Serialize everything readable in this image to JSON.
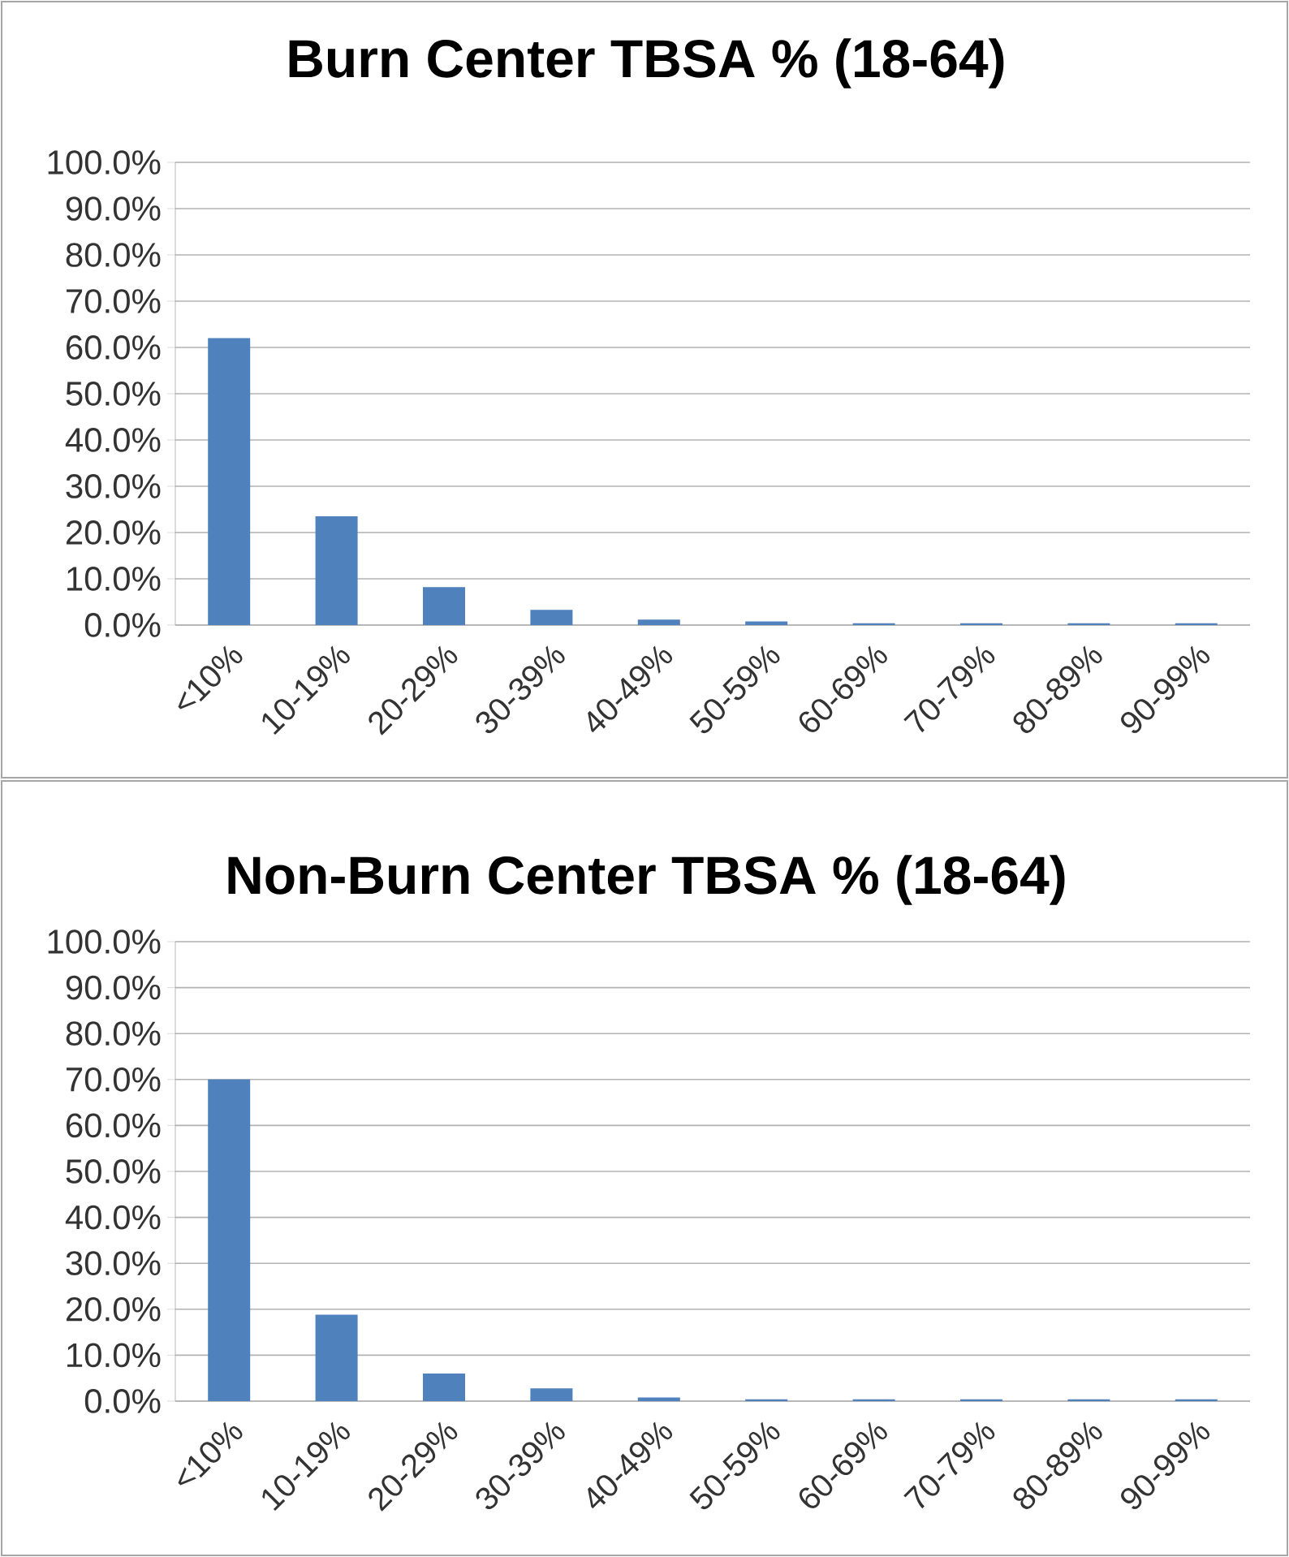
{
  "chart_data": [
    {
      "type": "bar",
      "title": "Burn Center TBSA % (18-64)",
      "categories": [
        "<10%",
        "10-19%",
        "20-29%",
        "30-39%",
        "40-49%",
        "50-59%",
        "60-69%",
        "70-79%",
        "80-89%",
        "90-99%"
      ],
      "values": [
        62,
        23.5,
        8.2,
        3.3,
        1.2,
        0.8,
        0.4,
        0.4,
        0.4,
        0.4
      ],
      "color": "#4f81bd",
      "ylim": [
        0,
        100
      ],
      "yticks": [
        {
          "value": 0,
          "label": "0.0%"
        },
        {
          "value": 10,
          "label": "10.0%"
        },
        {
          "value": 20,
          "label": "20.0%"
        },
        {
          "value": 30,
          "label": "30.0%"
        },
        {
          "value": 40,
          "label": "40.0%"
        },
        {
          "value": 50,
          "label": "50.0%"
        },
        {
          "value": 60,
          "label": "60.0%"
        },
        {
          "value": 70,
          "label": "70.0%"
        },
        {
          "value": 80,
          "label": "80.0%"
        },
        {
          "value": 90,
          "label": "90.0%"
        },
        {
          "value": 100,
          "label": "100.0%"
        }
      ],
      "grid": "y"
    },
    {
      "type": "bar",
      "title": "Non-Burn Center TBSA % (18-64)",
      "categories": [
        "<10%",
        "10-19%",
        "20-29%",
        "30-39%",
        "40-49%",
        "50-59%",
        "60-69%",
        "70-79%",
        "80-89%",
        "90-99%"
      ],
      "values": [
        70,
        18.8,
        6,
        2.8,
        0.8,
        0.4,
        0.4,
        0.4,
        0.4,
        0.4
      ],
      "color": "#4f81bd",
      "ylim": [
        0,
        100
      ],
      "yticks": [
        {
          "value": 0,
          "label": "0.0%"
        },
        {
          "value": 10,
          "label": "10.0%"
        },
        {
          "value": 20,
          "label": "20.0%"
        },
        {
          "value": 30,
          "label": "30.0%"
        },
        {
          "value": 40,
          "label": "40.0%"
        },
        {
          "value": 50,
          "label": "50.0%"
        },
        {
          "value": 60,
          "label": "60.0%"
        },
        {
          "value": 70,
          "label": "70.0%"
        },
        {
          "value": 80,
          "label": "80.0%"
        },
        {
          "value": 90,
          "label": "90.0%"
        },
        {
          "value": 100,
          "label": "100.0%"
        }
      ],
      "grid": "y"
    }
  ]
}
